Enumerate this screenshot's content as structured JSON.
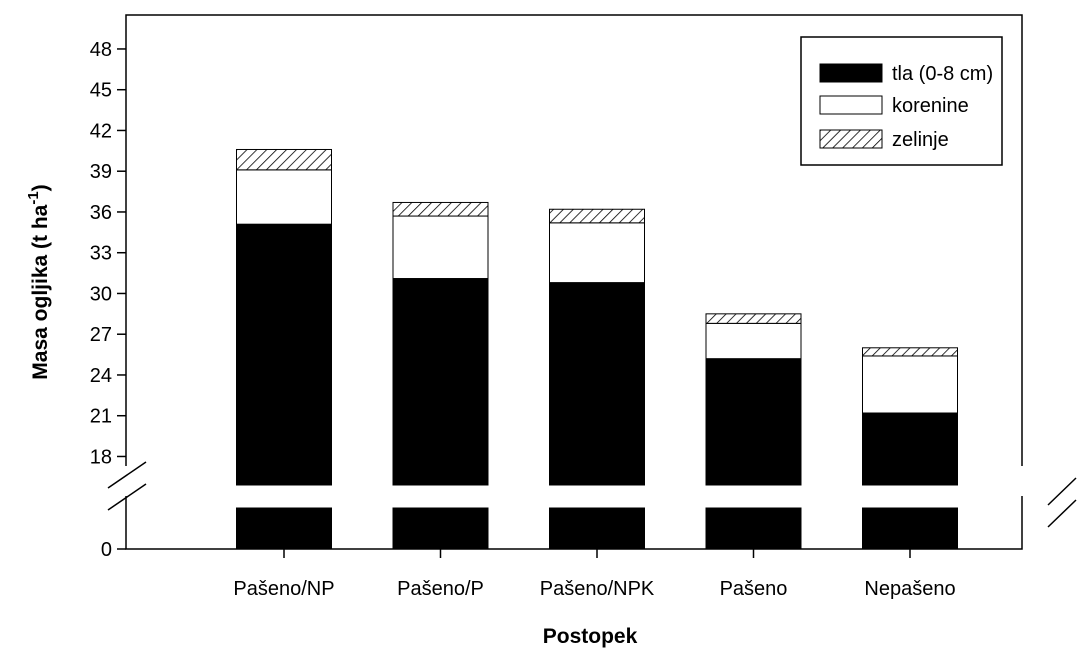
{
  "chart_data": {
    "type": "bar",
    "stacked": true,
    "broken_y_axis": true,
    "xlabel": "Postopek",
    "ylabel": "Masa ogljika (t ha",
    "ylabel_superscript": "-1",
    "ylabel_suffix": ")",
    "categories": [
      "Pašeno/NP",
      "Pašeno/P",
      "Pašeno/NPK",
      "Pašeno",
      "Nepašeno"
    ],
    "y_lower_ticks": [
      "0"
    ],
    "y_upper_ticks": [
      "18",
      "21",
      "24",
      "27",
      "30",
      "33",
      "36",
      "39",
      "42",
      "45",
      "48"
    ],
    "y_upper_range": [
      15.9,
      50.5
    ],
    "legend_position": "top-right",
    "grid": false,
    "series": [
      {
        "name": "tla (0-8 cm)",
        "fill": "solid-black",
        "values": [
          35.1,
          31.1,
          30.8,
          25.2,
          21.2
        ]
      },
      {
        "name": "korenine",
        "fill": "white",
        "values": [
          4.0,
          4.6,
          4.4,
          2.6,
          4.2
        ]
      },
      {
        "name": "zelinje",
        "fill": "diagonal-hatch",
        "values": [
          1.5,
          1.0,
          1.0,
          0.7,
          0.6
        ]
      }
    ],
    "colors": {
      "bar_black": "#000000",
      "bar_white": "#ffffff",
      "stroke": "#000000"
    }
  }
}
